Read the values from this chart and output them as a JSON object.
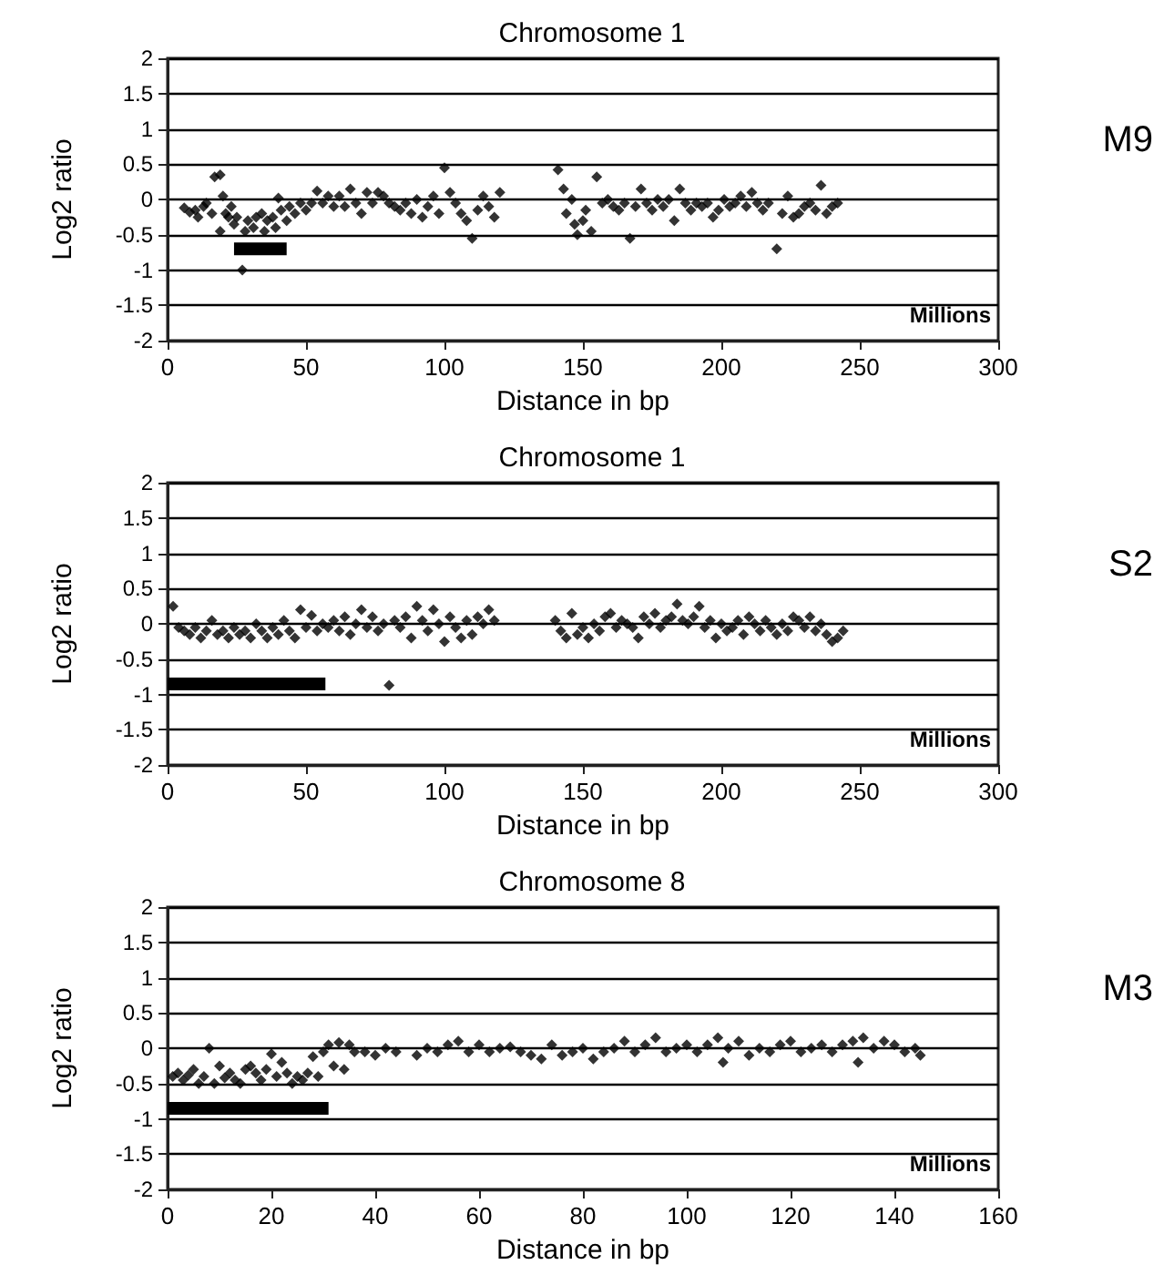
{
  "chart_data": [
    {
      "type": "scatter",
      "title": "Chromosome 1",
      "xlabel": "Distance in bp",
      "ylabel": "Log2 ratio",
      "annotations": [
        "Millions",
        "M9"
      ],
      "xlim": [
        0,
        300
      ],
      "xticks": [
        0,
        50,
        100,
        150,
        200,
        250,
        300
      ],
      "ylim": [
        -2,
        2
      ],
      "yticks": [
        -2,
        -1.5,
        -1,
        -0.5,
        0,
        0.5,
        1,
        1.5,
        2
      ],
      "grid": "y",
      "series": [
        {
          "color": "#000000",
          "marker": "diamond",
          "x": [
            6,
            8,
            10,
            11,
            13,
            14,
            16,
            17,
            19,
            19,
            20,
            21,
            22,
            23,
            24,
            25,
            27,
            28,
            29,
            31,
            32,
            34,
            35,
            36,
            38,
            39,
            40,
            41,
            43,
            44,
            46,
            48,
            50,
            52,
            54,
            56,
            58,
            60,
            62,
            64,
            66,
            68,
            70,
            72,
            74,
            76,
            78,
            80,
            82,
            84,
            86,
            88,
            90,
            92,
            94,
            96,
            98,
            100,
            102,
            104,
            106,
            108,
            110,
            112,
            114,
            116,
            118,
            120,
            141,
            143,
            144,
            146,
            147,
            148,
            150,
            151,
            153,
            155,
            157,
            159,
            161,
            163,
            165,
            167,
            169,
            171,
            173,
            175,
            177,
            179,
            181,
            183,
            185,
            187,
            189,
            191,
            193,
            195,
            197,
            199,
            201,
            203,
            205,
            207,
            209,
            211,
            213,
            215,
            217,
            220,
            222,
            224,
            226,
            228,
            230,
            232,
            234,
            236,
            238,
            240,
            242
          ],
          "values": [
            -0.12,
            -0.18,
            -0.15,
            -0.25,
            -0.1,
            -0.05,
            -0.2,
            0.32,
            0.35,
            -0.45,
            0.05,
            -0.2,
            -0.25,
            -0.1,
            -0.35,
            -0.25,
            -1.0,
            -0.45,
            -0.3,
            -0.4,
            -0.25,
            -0.2,
            -0.45,
            -0.3,
            -0.25,
            -0.4,
            0.02,
            -0.15,
            -0.3,
            -0.1,
            -0.2,
            -0.05,
            -0.15,
            -0.05,
            0.12,
            -0.05,
            0.05,
            -0.1,
            0.05,
            -0.1,
            0.15,
            -0.05,
            -0.2,
            0.1,
            -0.05,
            0.1,
            0.05,
            -0.05,
            -0.1,
            -0.15,
            -0.05,
            -0.2,
            0.0,
            -0.25,
            -0.1,
            0.05,
            -0.2,
            0.45,
            0.1,
            -0.05,
            -0.2,
            -0.3,
            -0.55,
            -0.15,
            0.05,
            -0.1,
            -0.25,
            0.1,
            0.42,
            0.15,
            -0.2,
            0.0,
            -0.35,
            -0.5,
            -0.3,
            -0.15,
            -0.45,
            0.32,
            -0.05,
            0.0,
            -0.1,
            -0.15,
            -0.05,
            -0.55,
            -0.1,
            0.15,
            -0.05,
            -0.15,
            0.0,
            -0.1,
            0.0,
            -0.3,
            0.15,
            -0.05,
            -0.15,
            -0.05,
            -0.1,
            -0.05,
            -0.25,
            -0.15,
            0.0,
            -0.1,
            -0.05,
            0.05,
            -0.1,
            0.1,
            -0.05,
            -0.15,
            -0.05,
            -0.7,
            -0.2,
            0.05,
            -0.25,
            -0.2,
            -0.1,
            -0.05,
            -0.15,
            0.2,
            -0.2,
            -0.1,
            -0.05
          ]
        },
        {
          "type": "line",
          "color": "#000000",
          "marker": "none",
          "x": [
            24,
            43
          ],
          "values": [
            -0.7,
            -0.7
          ]
        }
      ]
    },
    {
      "type": "scatter",
      "title": "Chromosome 1",
      "xlabel": "Distance in bp",
      "ylabel": "Log2 ratio",
      "annotations": [
        "Millions",
        "S2"
      ],
      "xlim": [
        0,
        300
      ],
      "xticks": [
        0,
        50,
        100,
        150,
        200,
        250,
        300
      ],
      "ylim": [
        -2,
        2
      ],
      "yticks": [
        -2,
        -1.5,
        -1,
        -0.5,
        0,
        0.5,
        1,
        1.5,
        2
      ],
      "grid": "y",
      "series": [
        {
          "color": "#000000",
          "marker": "diamond",
          "x": [
            2,
            4,
            6,
            8,
            10,
            12,
            14,
            16,
            18,
            20,
            22,
            24,
            26,
            28,
            30,
            32,
            34,
            36,
            38,
            40,
            42,
            44,
            46,
            48,
            50,
            52,
            54,
            56,
            58,
            60,
            62,
            64,
            66,
            68,
            70,
            72,
            74,
            76,
            78,
            80,
            82,
            84,
            86,
            88,
            90,
            92,
            94,
            96,
            98,
            100,
            102,
            104,
            106,
            108,
            110,
            112,
            114,
            116,
            118,
            140,
            142,
            144,
            146,
            148,
            150,
            152,
            154,
            156,
            158,
            160,
            162,
            164,
            166,
            168,
            170,
            172,
            174,
            176,
            178,
            180,
            182,
            184,
            186,
            188,
            190,
            192,
            194,
            196,
            198,
            200,
            202,
            204,
            206,
            208,
            210,
            212,
            214,
            216,
            218,
            220,
            222,
            224,
            226,
            228,
            230,
            232,
            234,
            236,
            238,
            240,
            242,
            244
          ],
          "values": [
            0.25,
            -0.05,
            -0.1,
            -0.15,
            -0.05,
            -0.2,
            -0.1,
            0.05,
            -0.15,
            -0.1,
            -0.2,
            -0.05,
            -0.15,
            -0.1,
            -0.2,
            0.0,
            -0.1,
            -0.2,
            -0.05,
            -0.15,
            0.05,
            -0.1,
            -0.2,
            0.2,
            -0.05,
            0.12,
            -0.1,
            0.0,
            -0.05,
            0.05,
            -0.1,
            0.1,
            -0.15,
            0.0,
            0.2,
            -0.05,
            0.1,
            -0.1,
            0.0,
            -0.87,
            0.05,
            -0.05,
            0.1,
            -0.2,
            0.25,
            0.05,
            -0.1,
            0.2,
            0.0,
            -0.25,
            0.1,
            -0.05,
            -0.2,
            0.05,
            -0.15,
            0.1,
            0.0,
            0.2,
            0.05,
            0.05,
            -0.1,
            -0.2,
            0.15,
            -0.15,
            -0.05,
            -0.2,
            0.0,
            -0.1,
            0.1,
            0.15,
            -0.05,
            0.05,
            0.0,
            -0.05,
            -0.2,
            0.1,
            0.0,
            0.15,
            -0.05,
            0.05,
            0.1,
            0.28,
            0.05,
            0.0,
            0.1,
            0.25,
            -0.05,
            0.05,
            -0.2,
            0.0,
            -0.1,
            -0.05,
            0.05,
            -0.15,
            0.1,
            0.0,
            -0.1,
            0.05,
            -0.05,
            -0.15,
            0.0,
            -0.1,
            0.1,
            0.05,
            -0.05,
            0.1,
            -0.1,
            0.0,
            -0.15,
            -0.25,
            -0.2,
            -0.1
          ]
        },
        {
          "type": "line",
          "color": "#000000",
          "marker": "none",
          "x": [
            0,
            57
          ],
          "values": [
            -0.85,
            -0.85
          ]
        }
      ]
    },
    {
      "type": "scatter",
      "title": "Chromosome 8",
      "xlabel": "Distance in bp",
      "ylabel": "Log2 ratio",
      "annotations": [
        "Millions",
        "M3"
      ],
      "xlim": [
        0,
        160
      ],
      "xticks": [
        0,
        20,
        40,
        60,
        80,
        100,
        120,
        140,
        160
      ],
      "ylim": [
        -2,
        2
      ],
      "yticks": [
        -2,
        -1.5,
        -1,
        -0.5,
        0,
        0.5,
        1,
        1.5,
        2
      ],
      "grid": "y",
      "series": [
        {
          "color": "#000000",
          "marker": "diamond",
          "x": [
            1,
            2,
            3,
            4,
            5,
            6,
            7,
            8,
            9,
            10,
            11,
            12,
            13,
            14,
            15,
            16,
            17,
            18,
            19,
            20,
            21,
            22,
            23,
            24,
            25,
            26,
            27,
            28,
            29,
            30,
            31,
            32,
            33,
            34,
            35,
            36,
            38,
            40,
            42,
            44,
            48,
            50,
            52,
            54,
            56,
            58,
            60,
            62,
            64,
            66,
            68,
            70,
            72,
            74,
            76,
            78,
            80,
            82,
            84,
            86,
            88,
            90,
            92,
            94,
            96,
            98,
            100,
            102,
            104,
            106,
            107,
            108,
            110,
            112,
            114,
            116,
            118,
            120,
            122,
            124,
            126,
            128,
            130,
            132,
            133,
            134,
            136,
            138,
            140,
            142,
            144,
            145
          ],
          "values": [
            -0.4,
            -0.35,
            -0.45,
            -0.38,
            -0.3,
            -0.5,
            -0.4,
            0.0,
            -0.5,
            -0.25,
            -0.42,
            -0.35,
            -0.45,
            -0.5,
            -0.3,
            -0.25,
            -0.35,
            -0.45,
            -0.3,
            -0.08,
            -0.4,
            -0.2,
            -0.35,
            -0.5,
            -0.4,
            -0.45,
            -0.35,
            -0.12,
            -0.4,
            -0.05,
            0.05,
            -0.25,
            0.08,
            -0.3,
            0.05,
            -0.05,
            -0.05,
            -0.1,
            0.0,
            -0.05,
            -0.1,
            0.0,
            -0.05,
            0.05,
            0.1,
            -0.05,
            0.05,
            -0.05,
            0.0,
            0.02,
            -0.05,
            -0.1,
            -0.15,
            0.05,
            -0.1,
            -0.05,
            0.0,
            -0.15,
            -0.05,
            0.0,
            0.1,
            -0.05,
            0.05,
            0.15,
            -0.05,
            0.0,
            0.05,
            -0.05,
            0.05,
            0.15,
            -0.2,
            0.0,
            0.1,
            -0.1,
            0.0,
            -0.05,
            0.05,
            0.1,
            -0.05,
            0.0,
            0.05,
            -0.05,
            0.05,
            0.1,
            -0.2,
            0.15,
            0.0,
            0.1,
            0.05,
            -0.05,
            0.0,
            -0.1
          ]
        },
        {
          "type": "line",
          "color": "#000000",
          "marker": "none",
          "x": [
            0,
            31
          ],
          "values": [
            -0.85,
            -0.85
          ]
        }
      ]
    }
  ]
}
